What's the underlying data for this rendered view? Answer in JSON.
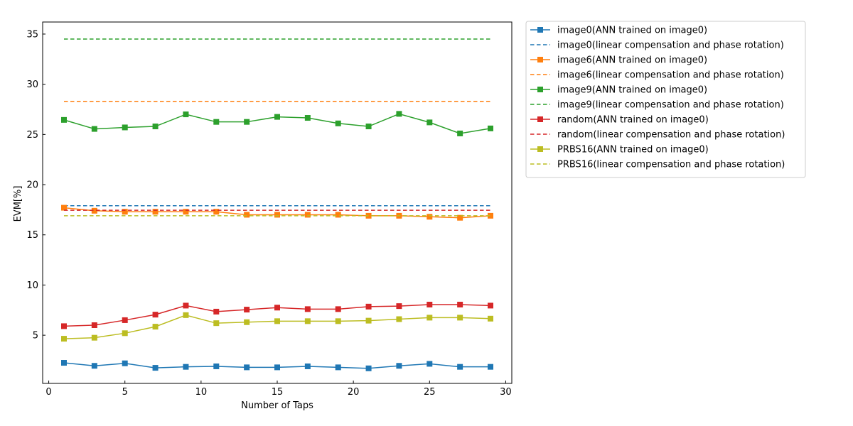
{
  "chart_data": {
    "type": "line",
    "title": "",
    "xlabel": "Number of Taps",
    "ylabel": "EVM[%]",
    "xlim": [
      -0.4,
      30.4
    ],
    "ylim": [
      0.2,
      36.2
    ],
    "xticks": [
      0,
      5,
      10,
      15,
      20,
      25,
      30
    ],
    "yticks": [
      5,
      10,
      15,
      20,
      25,
      30,
      35
    ],
    "x": [
      1,
      3,
      5,
      7,
      9,
      11,
      13,
      15,
      17,
      19,
      21,
      23,
      25,
      27,
      29
    ],
    "grid": false,
    "legend_position": "outside-top-right",
    "series": [
      {
        "name": "image0(ANN trained on image0)",
        "style": "solid-square",
        "color": "#1f77b4",
        "values": [
          2.25,
          1.95,
          2.2,
          1.75,
          1.85,
          1.9,
          1.8,
          1.8,
          1.9,
          1.8,
          1.7,
          1.95,
          2.15,
          1.85,
          1.85
        ]
      },
      {
        "name": "image0(linear compensation and phase rotation)",
        "style": "dashed",
        "color": "#1f77b4",
        "values": [
          17.9,
          17.9,
          17.9,
          17.9,
          17.9,
          17.9,
          17.9,
          17.9,
          17.9,
          17.9,
          17.9,
          17.9,
          17.9,
          17.9,
          17.9
        ]
      },
      {
        "name": "image6(ANN trained on image0)",
        "style": "solid-square",
        "color": "#ff7f0e",
        "values": [
          17.7,
          17.4,
          17.3,
          17.3,
          17.3,
          17.3,
          17.0,
          17.0,
          17.0,
          17.0,
          16.9,
          16.9,
          16.8,
          16.7,
          16.9
        ]
      },
      {
        "name": "image6(linear compensation and phase rotation)",
        "style": "dashed",
        "color": "#ff7f0e",
        "values": [
          28.3,
          28.3,
          28.3,
          28.3,
          28.3,
          28.3,
          28.3,
          28.3,
          28.3,
          28.3,
          28.3,
          28.3,
          28.3,
          28.3,
          28.3
        ]
      },
      {
        "name": "image9(ANN trained on image0)",
        "style": "solid-square",
        "color": "#2ca02c",
        "values": [
          26.45,
          25.55,
          25.7,
          25.8,
          27.0,
          26.25,
          26.25,
          26.75,
          26.65,
          26.1,
          25.8,
          27.05,
          26.2,
          25.1,
          25.6
        ]
      },
      {
        "name": "image9(linear compensation and phase rotation)",
        "style": "dashed",
        "color": "#2ca02c",
        "values": [
          34.5,
          34.5,
          34.5,
          34.5,
          34.5,
          34.5,
          34.5,
          34.5,
          34.5,
          34.5,
          34.5,
          34.5,
          34.5,
          34.5,
          34.5
        ]
      },
      {
        "name": "random(ANN trained on image0)",
        "style": "solid-square",
        "color": "#d62728",
        "values": [
          5.9,
          6.0,
          6.5,
          7.05,
          7.95,
          7.35,
          7.55,
          7.75,
          7.6,
          7.6,
          7.85,
          7.9,
          8.05,
          8.05,
          7.95
        ]
      },
      {
        "name": "random(linear compensation and phase rotation)",
        "style": "dashed",
        "color": "#d62728",
        "values": [
          17.45,
          17.45,
          17.45,
          17.45,
          17.45,
          17.45,
          17.45,
          17.45,
          17.45,
          17.45,
          17.45,
          17.45,
          17.45,
          17.45,
          17.45
        ]
      },
      {
        "name": "PRBS16(ANN trained on image0)",
        "style": "solid-square",
        "color": "#bcbd22",
        "values": [
          4.65,
          4.75,
          5.2,
          5.85,
          7.0,
          6.2,
          6.3,
          6.4,
          6.4,
          6.4,
          6.45,
          6.6,
          6.75,
          6.75,
          6.65
        ]
      },
      {
        "name": "PRBS16(linear compensation and phase rotation)",
        "style": "dashed",
        "color": "#bcbd22",
        "values": [
          16.9,
          16.9,
          16.9,
          16.9,
          16.9,
          16.9,
          16.9,
          16.9,
          16.9,
          16.9,
          16.9,
          16.9,
          16.9,
          16.9,
          16.9
        ]
      }
    ]
  }
}
